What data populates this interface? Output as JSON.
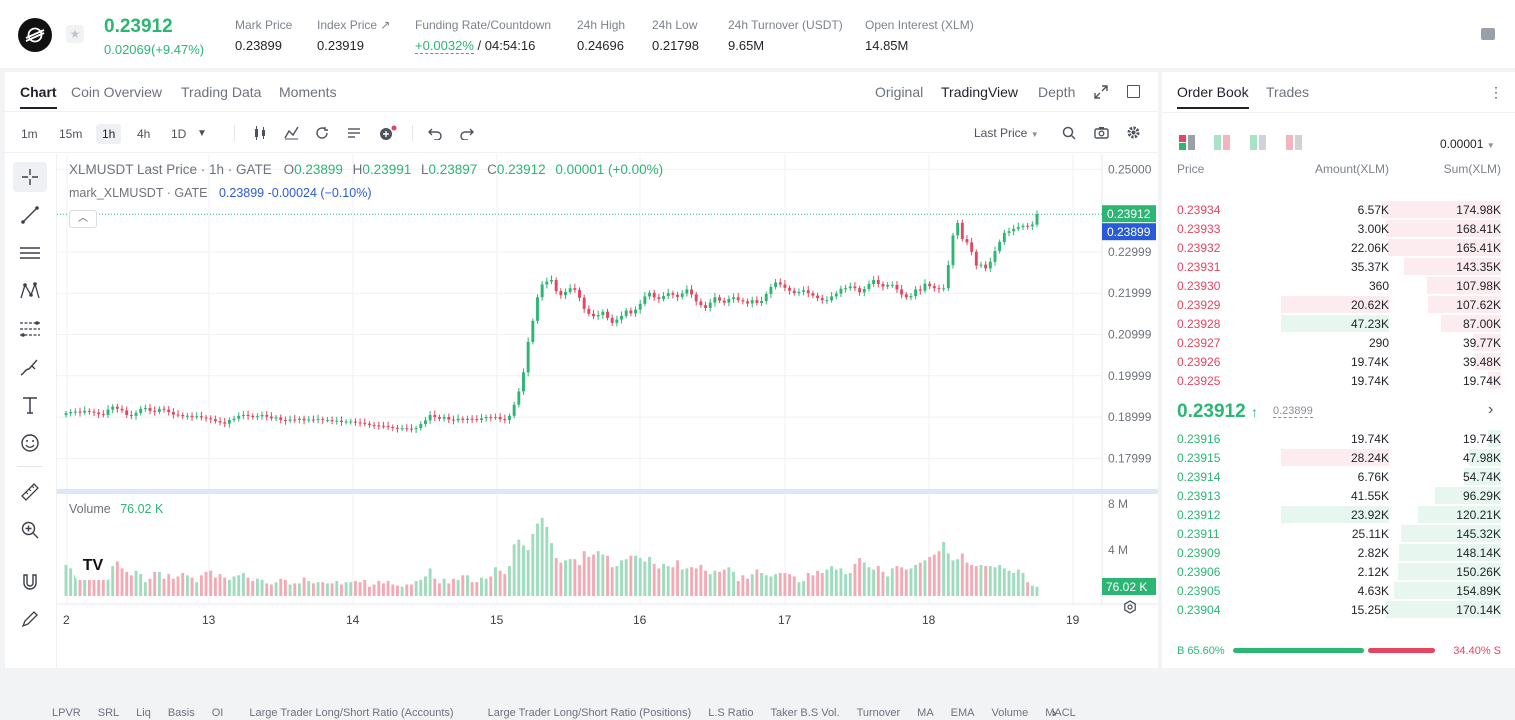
{
  "ticker": {
    "last_price": "0.23912",
    "change": "0.02069(+9.47%)",
    "stats": [
      {
        "label": "Mark Price",
        "value": "0.23899"
      },
      {
        "label": "Index Price ↗",
        "value": "0.23919"
      },
      {
        "label": "Funding Rate/Countdown",
        "value_green": "+0.0032%",
        "value": " / 04:54:16"
      },
      {
        "label": "24h High",
        "value": "0.24696"
      },
      {
        "label": "24h Low",
        "value": "0.21798"
      },
      {
        "label": "24h Turnover (USDT)",
        "value": "9.65M"
      },
      {
        "label": "Open Interest (XLM)",
        "value": "14.85M"
      }
    ]
  },
  "chart_tabs": [
    "Chart",
    "Coin Overview",
    "Trading Data",
    "Moments"
  ],
  "chart_views": [
    "Original",
    "TradingView",
    "Depth"
  ],
  "intervals": [
    "1m",
    "15m",
    "1h",
    "4h",
    "1D"
  ],
  "price_source": "Last Price",
  "legend": {
    "main": "XLMUSDT Last Price · 1h · GATE",
    "o_label": "O",
    "o": "0.23899",
    "h_label": "H",
    "h": "0.23991",
    "l_label": "L",
    "l": "0.23897",
    "c_label": "C",
    "c": "0.23912",
    "chg": "0.00001 (+0.00%)",
    "mark_name": "mark_XLMUSDT · GATE",
    "mark_vals": "0.23899  -0.00024 (−0.10%)"
  },
  "volume_label": "Volume",
  "volume_value": "76.02 K",
  "indicators": [
    "LPVR",
    "SRL",
    "Liq",
    "Basis",
    "OI",
    "Large Trader Long/Short Ratio (Accounts)",
    "Large Trader Long/Short Ratio (Positions)",
    "L.S Ratio",
    "Taker B.S Vol.",
    "Turnover",
    "MA",
    "EMA",
    "Volume",
    "MACL"
  ],
  "colors": {
    "up": "#2bb673",
    "down": "#e5455e",
    "mark": "#2a5bd7"
  },
  "chart_data": {
    "type": "candlestick",
    "price_ticks": [
      "0.25000",
      "0.22999",
      "0.21999",
      "0.20999",
      "0.19999",
      "0.18999",
      "0.17999"
    ],
    "price_tick_values": [
      0.25,
      0.22999,
      0.21999,
      0.20999,
      0.19999,
      0.18999,
      0.17999
    ],
    "ylim": [
      0.1733,
      0.2537
    ],
    "x_ticks": [
      "2",
      "13",
      "14",
      "15",
      "16",
      "17",
      "18",
      "19"
    ],
    "last_price_label": "0.23912",
    "mark_price_label": "0.23899",
    "volume_ticks": [
      "8 M",
      "4 M"
    ],
    "volume_tick_values": [
      8000000,
      4000000
    ],
    "volume_last_label": "76.02 K",
    "closes": [
      0.1909,
      0.1912,
      0.1913,
      0.1911,
      0.1915,
      0.1913,
      0.1911,
      0.1907,
      0.1905,
      0.1918,
      0.1925,
      0.192,
      0.1916,
      0.1905,
      0.1903,
      0.191,
      0.192,
      0.1922,
      0.1915,
      0.1913,
      0.192,
      0.1918,
      0.1912,
      0.1906,
      0.1905,
      0.1902,
      0.1903,
      0.19,
      0.1902,
      0.1899,
      0.1897,
      0.1895,
      0.189,
      0.1887,
      0.1884,
      0.1893,
      0.1896,
      0.1903,
      0.1905,
      0.1903,
      0.19,
      0.1902,
      0.1905,
      0.1901,
      0.1897,
      0.1899,
      0.1893,
      0.1891,
      0.1894,
      0.1893,
      0.1896,
      0.1892,
      0.1894,
      0.1893,
      0.1895,
      0.1893,
      0.1893,
      0.189,
      0.1891,
      0.1888,
      0.1889,
      0.1889,
      0.1887,
      0.1886,
      0.1884,
      0.1881,
      0.188,
      0.1879,
      0.1878,
      0.1876,
      0.1874,
      0.1872,
      0.1873,
      0.1872,
      0.1871,
      0.1873,
      0.1883,
      0.1892,
      0.1905,
      0.19,
      0.1896,
      0.19,
      0.1894,
      0.1892,
      0.1896,
      0.1893,
      0.1896,
      0.1895,
      0.1893,
      0.1897,
      0.19,
      0.1899,
      0.19,
      0.1895,
      0.1893,
      0.1903,
      0.193,
      0.1962,
      0.2008,
      0.2082,
      0.2133,
      0.219,
      0.2221,
      0.2228,
      0.2232,
      0.2205,
      0.2195,
      0.2203,
      0.2212,
      0.2208,
      0.2189,
      0.2162,
      0.215,
      0.2144,
      0.2147,
      0.2155,
      0.214,
      0.2128,
      0.2136,
      0.2145,
      0.2158,
      0.2151,
      0.216,
      0.2174,
      0.2192,
      0.2201,
      0.219,
      0.2186,
      0.2193,
      0.22,
      0.2196,
      0.2191,
      0.2199,
      0.2209,
      0.2197,
      0.218,
      0.2171,
      0.2164,
      0.2177,
      0.219,
      0.2182,
      0.2177,
      0.2186,
      0.219,
      0.2183,
      0.218,
      0.2175,
      0.2183,
      0.2176,
      0.2181,
      0.2198,
      0.2215,
      0.2226,
      0.2221,
      0.2213,
      0.2206,
      0.22,
      0.2203,
      0.2207,
      0.22,
      0.2194,
      0.2188,
      0.2183,
      0.2183,
      0.2192,
      0.2199,
      0.2211,
      0.2212,
      0.2216,
      0.2212,
      0.2202,
      0.221,
      0.2222,
      0.2232,
      0.2222,
      0.2216,
      0.222,
      0.222,
      0.2209,
      0.2197,
      0.219,
      0.2193,
      0.2209,
      0.2206,
      0.2223,
      0.2217,
      0.2212,
      0.221,
      0.2212,
      0.2268,
      0.234,
      0.237,
      0.2331,
      0.2323,
      0.23,
      0.2267,
      0.2269,
      0.226,
      0.2276,
      0.2302,
      0.2324,
      0.2346,
      0.235,
      0.2356,
      0.236,
      0.2363,
      0.2362,
      0.2366,
      0.2391
    ],
    "volumes": [
      2.7,
      2.4,
      1.8,
      2.6,
      2.3,
      1.9,
      2.7,
      2.2,
      1.6,
      2.5,
      2.6,
      3.0,
      2.4,
      2.1,
      1.8,
      2.2,
      1.9,
      1.2,
      1.5,
      2.1,
      2.1,
      1.5,
      1.9,
      1.5,
      1.7,
      2.0,
      1.8,
      1.6,
      1.2,
      1.8,
      2.1,
      2.2,
      1.6,
      1.9,
      1.6,
      1.4,
      1.7,
      1.8,
      2.0,
      1.6,
      1.3,
      1.5,
      1.4,
      1.1,
      1.0,
      1.2,
      1.5,
      1.4,
      1.0,
      1.1,
      1.1,
      1.6,
      1.3,
      1.1,
      1.2,
      1.2,
      1.1,
      1.1,
      1.3,
      1.0,
      1.2,
      1.2,
      1.3,
      1.2,
      1.4,
      0.8,
      1.0,
      1.3,
      1.1,
      1.3,
      1.0,
      0.9,
      0.8,
      1.0,
      1.0,
      1.3,
      1.4,
      1.7,
      2.4,
      1.5,
      1.1,
      1.5,
      1.1,
      1.5,
      1.4,
      1.8,
      1.8,
      1.2,
      1.2,
      1.6,
      1.5,
      1.7,
      2.5,
      2.2,
      1.9,
      2.6,
      4.5,
      4.9,
      4.4,
      4.0,
      5.4,
      6.3,
      6.8,
      6.0,
      4.6,
      3.3,
      2.9,
      3.1,
      3.2,
      3.2,
      2.7,
      3.9,
      3.4,
      3.6,
      3.9,
      3.6,
      3.5,
      2.5,
      2.6,
      3.1,
      3.2,
      3.5,
      3.5,
      3.3,
      3.0,
      3.4,
      2.8,
      2.4,
      2.8,
      2.6,
      2.5,
      3.1,
      2.3,
      2.4,
      2.5,
      2.4,
      2.7,
      2.2,
      1.9,
      2.2,
      2.1,
      2.3,
      2.5,
      2.1,
      1.3,
      1.8,
      1.5,
      1.9,
      2.3,
      2.0,
      1.8,
      1.7,
      1.9,
      2.0,
      2.0,
      1.9,
      1.7,
      1.2,
      1.3,
      2.0,
      1.8,
      2.2,
      2.0,
      2.3,
      2.6,
      2.3,
      2.4,
      1.9,
      2.0,
      2.8,
      3.3,
      2.9,
      2.5,
      2.3,
      2.6,
      2.1,
      1.7,
      2.4,
      2.6,
      2.5,
      2.3,
      2.4,
      2.7,
      2.9,
      3.1,
      3.4,
      3.6,
      3.9,
      4.7,
      3.7,
      3.1,
      3.2,
      3.7,
      2.9,
      2.7,
      2.6,
      2.7,
      2.6,
      2.6,
      2.5,
      2.7,
      2.4,
      2.2,
      2.0,
      2.3,
      2.0,
      1.2,
      0.9,
      0.8,
      0.6,
      0.2
    ]
  },
  "orderbook": {
    "tabs": [
      "Order Book",
      "Trades"
    ],
    "precision": "0.00001",
    "headers": [
      "Price",
      "Amount(XLM)",
      "Sum(XLM)"
    ],
    "asks": [
      {
        "price": "0.23934",
        "amount": "6.57K",
        "sum": "174.98K",
        "depth": 1.0
      },
      {
        "price": "0.23933",
        "amount": "3.00K",
        "sum": "168.41K",
        "depth": 0.96
      },
      {
        "price": "0.23932",
        "amount": "22.06K",
        "sum": "165.41K",
        "depth": 0.94
      },
      {
        "price": "0.23931",
        "amount": "35.37K",
        "sum": "143.35K",
        "depth": 0.81
      },
      {
        "price": "0.23930",
        "amount": "360",
        "sum": "107.98K",
        "depth": 0.62
      },
      {
        "price": "0.23929",
        "amount": "20.62K",
        "sum": "107.62K",
        "depth": 0.61
      },
      {
        "price": "0.23928",
        "amount": "47.23K",
        "sum": "87.00K",
        "depth": 0.5
      },
      {
        "price": "0.23927",
        "amount": "290",
        "sum": "39.77K",
        "depth": 0.23
      },
      {
        "price": "0.23926",
        "amount": "19.74K",
        "sum": "39.48K",
        "depth": 0.22
      },
      {
        "price": "0.23925",
        "amount": "19.74K",
        "sum": "19.74K",
        "depth": 0.11
      }
    ],
    "mid_price": "0.23912",
    "mid_arrow": "↑",
    "mark_price": "0.23899",
    "bids": [
      {
        "price": "0.23916",
        "amount": "19.74K",
        "sum": "19.74K",
        "depth": 0.11
      },
      {
        "price": "0.23915",
        "amount": "28.24K",
        "sum": "47.98K",
        "depth": 0.27
      },
      {
        "price": "0.23914",
        "amount": "6.76K",
        "sum": "54.74K",
        "depth": 0.31
      },
      {
        "price": "0.23913",
        "amount": "41.55K",
        "sum": "96.29K",
        "depth": 0.55
      },
      {
        "price": "0.23912",
        "amount": "23.92K",
        "sum": "120.21K",
        "depth": 0.69
      },
      {
        "price": "0.23911",
        "amount": "25.11K",
        "sum": "145.32K",
        "depth": 0.83
      },
      {
        "price": "0.23909",
        "amount": "2.82K",
        "sum": "148.14K",
        "depth": 0.85
      },
      {
        "price": "0.23906",
        "amount": "2.12K",
        "sum": "150.26K",
        "depth": 0.86
      },
      {
        "price": "0.23905",
        "amount": "4.63K",
        "sum": "154.89K",
        "depth": 0.89
      },
      {
        "price": "0.23904",
        "amount": "15.25K",
        "sum": "170.14K",
        "depth": 0.97
      }
    ],
    "buy_ratio": "B 65.60%",
    "sell_ratio": "34.40% S",
    "buy_fraction": 0.656
  }
}
